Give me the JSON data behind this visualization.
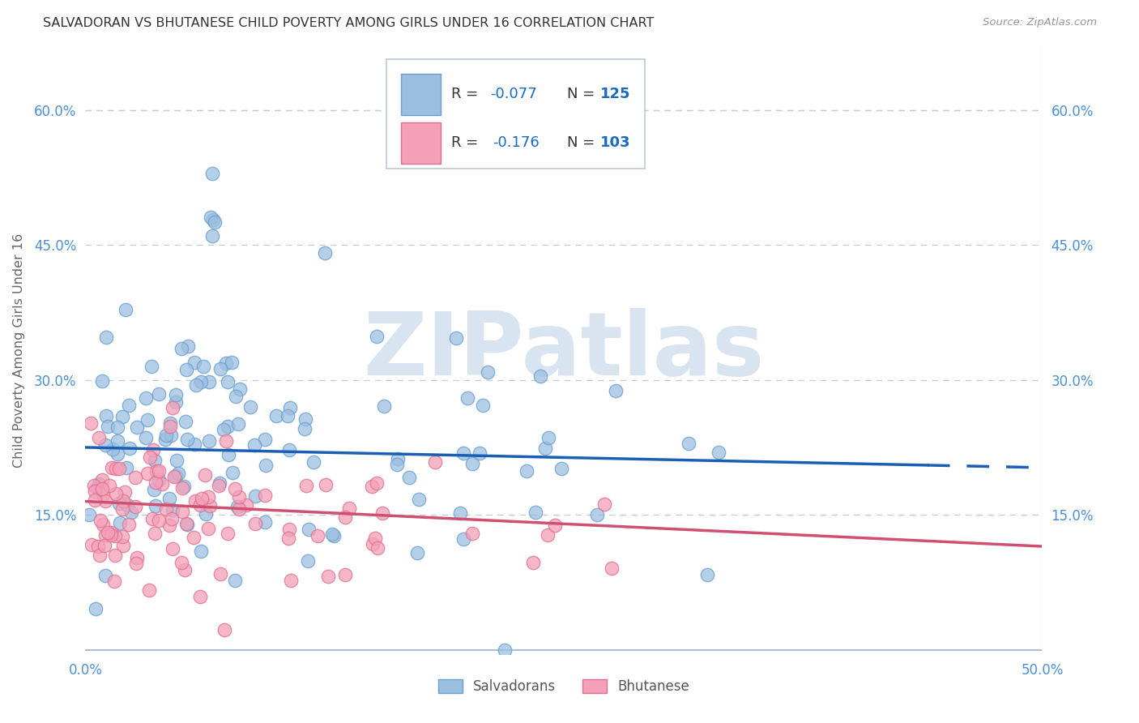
{
  "title": "SALVADORAN VS BHUTANESE CHILD POVERTY AMONG GIRLS UNDER 16 CORRELATION CHART",
  "source": "Source: ZipAtlas.com",
  "ylabel": "Child Poverty Among Girls Under 16",
  "xlim": [
    0.0,
    0.5
  ],
  "ylim": [
    -0.005,
    0.67
  ],
  "plot_ylim": [
    0.0,
    0.65
  ],
  "yticks": [
    0.15,
    0.3,
    0.45,
    0.6
  ],
  "ytick_labels": [
    "15.0%",
    "30.0%",
    "45.0%",
    "60.0%"
  ],
  "xticks": [
    0.0,
    0.5
  ],
  "xtick_labels": [
    "0.0%",
    "50.0%"
  ],
  "salvadorans_color": "#9bbfdf",
  "bhutanese_color": "#f4a0b8",
  "salvadorans_edge_color": "#6a9fcf",
  "bhutanese_edge_color": "#e07090",
  "salvadorans_line_color": "#1a5fb4",
  "bhutanese_line_color": "#d05070",
  "legend_color_R": "#333333",
  "legend_color_N": "#1a6abf",
  "legend_color_value": "#1a6abf",
  "watermark": "ZIPatlas",
  "watermark_color": "#d8e4f0",
  "grid_color": "#c0ccdc",
  "tick_color": "#4a90d9",
  "background_color": "#ffffff",
  "R_salvadorans": -0.077,
  "R_bhutanese": -0.176,
  "N_salvadorans": 125,
  "N_bhutanese": 103,
  "sal_seed": 12,
  "bhu_seed": 99,
  "sal_intercept": 0.225,
  "sal_slope": -0.045,
  "bhu_intercept": 0.165,
  "bhu_slope": -0.1
}
